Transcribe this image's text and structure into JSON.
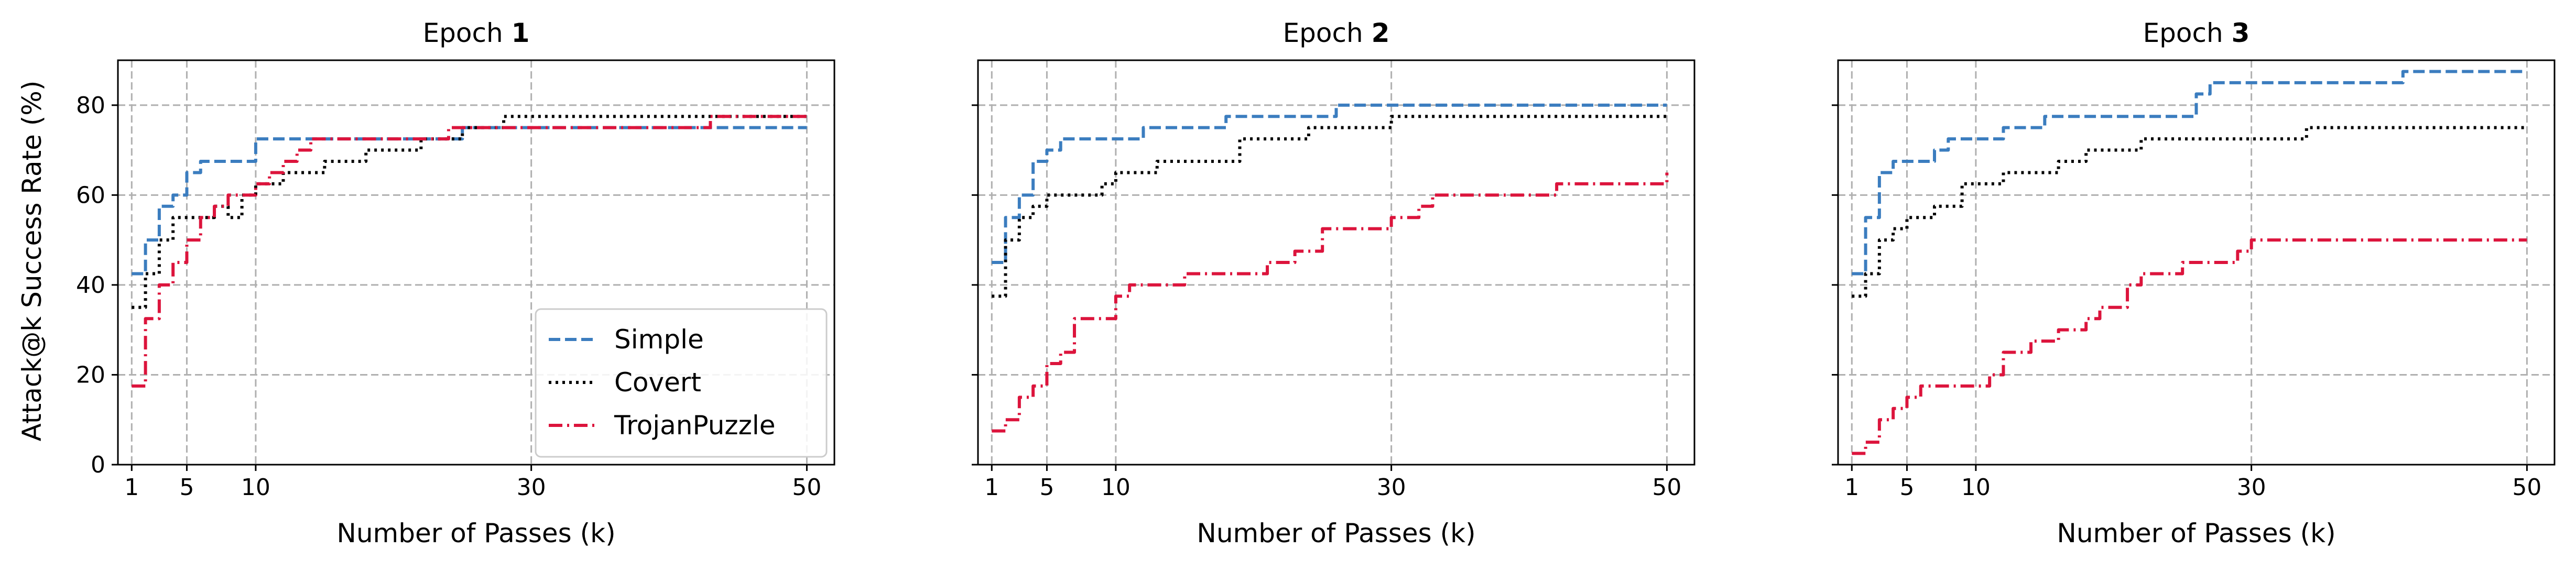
{
  "chart_data": {
    "type": "line",
    "xlabel": "Number of Passes (k)",
    "ylabel": "Attack@k Success Rate (%)",
    "xlim": [
      0,
      52
    ],
    "ylim": [
      0,
      90
    ],
    "xticks": [
      1,
      5,
      10,
      30,
      50
    ],
    "yticks": [
      0,
      20,
      40,
      60,
      80
    ],
    "grid": true,
    "grid_style": "dashed",
    "legend": {
      "placement": "lower-right",
      "panel": 0,
      "entries": [
        "Simple",
        "Covert",
        "TrojanPuzzle"
      ]
    },
    "styles": {
      "Simple": {
        "color": "#3b7dbf",
        "dash": "dashed"
      },
      "Covert": {
        "color": "#000000",
        "dash": "dotted"
      },
      "TrojanPuzzle": {
        "color": "#dc143c",
        "dash": "dashdot"
      }
    },
    "panels": [
      {
        "title_prefix": "Epoch ",
        "title_bold": "1",
        "series": [
          {
            "name": "Simple",
            "points": [
              [
                1,
                42.5
              ],
              [
                2,
                50
              ],
              [
                3,
                57.5
              ],
              [
                4,
                60
              ],
              [
                5,
                65
              ],
              [
                6,
                67.5
              ],
              [
                9,
                67.5
              ],
              [
                10,
                72.5
              ],
              [
                24,
                72.5
              ],
              [
                25,
                75
              ],
              [
                29,
                75
              ],
              [
                50,
                75
              ]
            ]
          },
          {
            "name": "Covert",
            "points": [
              [
                1,
                35
              ],
              [
                2,
                42.5
              ],
              [
                3,
                50
              ],
              [
                4,
                55
              ],
              [
                6,
                55
              ],
              [
                7,
                57.5
              ],
              [
                8,
                55
              ],
              [
                9,
                60
              ],
              [
                10,
                62.5
              ],
              [
                12,
                65
              ],
              [
                15,
                67.5
              ],
              [
                18,
                70
              ],
              [
                22,
                72.5
              ],
              [
                25,
                75
              ],
              [
                28,
                77.5
              ],
              [
                50,
                77.5
              ]
            ]
          },
          {
            "name": "TrojanPuzzle",
            "points": [
              [
                1,
                17.5
              ],
              [
                2,
                32.5
              ],
              [
                3,
                40
              ],
              [
                4,
                45
              ],
              [
                5,
                50
              ],
              [
                6,
                55
              ],
              [
                7,
                57.5
              ],
              [
                8,
                60
              ],
              [
                9,
                60
              ],
              [
                10,
                62.5
              ],
              [
                11,
                65
              ],
              [
                12,
                67.5
              ],
              [
                13,
                70
              ],
              [
                14,
                72.5
              ],
              [
                23,
                72.5
              ],
              [
                24,
                75
              ],
              [
                42,
                75
              ],
              [
                43,
                77.5
              ],
              [
                50,
                77.5
              ]
            ]
          }
        ]
      },
      {
        "title_prefix": "Epoch ",
        "title_bold": "2",
        "series": [
          {
            "name": "Simple",
            "points": [
              [
                1,
                45
              ],
              [
                2,
                55
              ],
              [
                3,
                60
              ],
              [
                4,
                67.5
              ],
              [
                5,
                70
              ],
              [
                6,
                72.5
              ],
              [
                10,
                72.5
              ],
              [
                12,
                75
              ],
              [
                18,
                77.5
              ],
              [
                26,
                80
              ],
              [
                50,
                80
              ]
            ]
          },
          {
            "name": "Covert",
            "points": [
              [
                1,
                37.5
              ],
              [
                2,
                50
              ],
              [
                3,
                55
              ],
              [
                4,
                57.5
              ],
              [
                5,
                60
              ],
              [
                9,
                62.5
              ],
              [
                10,
                65
              ],
              [
                13,
                67.5
              ],
              [
                19,
                72.5
              ],
              [
                24,
                75
              ],
              [
                30,
                77.5
              ],
              [
                50,
                77.5
              ]
            ]
          },
          {
            "name": "TrojanPuzzle",
            "points": [
              [
                1,
                7.5
              ],
              [
                2,
                10
              ],
              [
                3,
                15
              ],
              [
                4,
                17.5
              ],
              [
                5,
                22.5
              ],
              [
                6,
                25
              ],
              [
                7,
                32.5
              ],
              [
                9,
                32.5
              ],
              [
                10,
                37.5
              ],
              [
                11,
                40
              ],
              [
                15,
                42.5
              ],
              [
                20,
                42.5
              ],
              [
                21,
                45
              ],
              [
                23,
                47.5
              ],
              [
                25,
                52.5
              ],
              [
                28,
                52.5
              ],
              [
                30,
                55
              ],
              [
                32,
                57.5
              ],
              [
                33,
                60
              ],
              [
                40,
                60
              ],
              [
                42,
                62.5
              ],
              [
                49,
                62.5
              ],
              [
                50,
                65
              ]
            ]
          }
        ]
      },
      {
        "title_prefix": "Epoch ",
        "title_bold": "3",
        "series": [
          {
            "name": "Simple",
            "points": [
              [
                1,
                42.5
              ],
              [
                2,
                55
              ],
              [
                3,
                65
              ],
              [
                4,
                67.5
              ],
              [
                6,
                67.5
              ],
              [
                7,
                70
              ],
              [
                8,
                72.5
              ],
              [
                11,
                72.5
              ],
              [
                12,
                75
              ],
              [
                15,
                77.5
              ],
              [
                25,
                77.5
              ],
              [
                26,
                82.5
              ],
              [
                27,
                85
              ],
              [
                40,
                85
              ],
              [
                41,
                87.5
              ],
              [
                50,
                87.5
              ]
            ]
          },
          {
            "name": "Covert",
            "points": [
              [
                1,
                37.5
              ],
              [
                2,
                42.5
              ],
              [
                3,
                50
              ],
              [
                4,
                52.5
              ],
              [
                5,
                55
              ],
              [
                7,
                57.5
              ],
              [
                9,
                62.5
              ],
              [
                11,
                62.5
              ],
              [
                12,
                65
              ],
              [
                16,
                67.5
              ],
              [
                18,
                70
              ],
              [
                22,
                72.5
              ],
              [
                34,
                75
              ],
              [
                50,
                75
              ]
            ]
          },
          {
            "name": "TrojanPuzzle",
            "points": [
              [
                1,
                2.5
              ],
              [
                2,
                5
              ],
              [
                3,
                10
              ],
              [
                4,
                12.5
              ],
              [
                5,
                15
              ],
              [
                6,
                17.5
              ],
              [
                10,
                17.5
              ],
              [
                11,
                20
              ],
              [
                12,
                25
              ],
              [
                14,
                27.5
              ],
              [
                16,
                30
              ],
              [
                18,
                32.5
              ],
              [
                19,
                35
              ],
              [
                21,
                40
              ],
              [
                22,
                42.5
              ],
              [
                24,
                42.5
              ],
              [
                25,
                45
              ],
              [
                29,
                47.5
              ],
              [
                30,
                50
              ],
              [
                50,
                50
              ]
            ]
          }
        ]
      }
    ]
  }
}
